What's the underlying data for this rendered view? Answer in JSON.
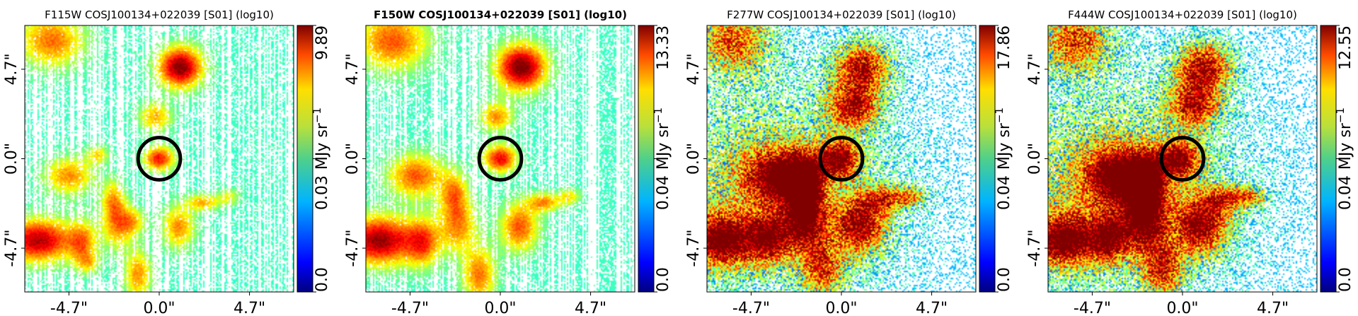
{
  "figure": {
    "panels": [
      {
        "title": "F115W COSJ100134+022039 [S01] (log10)",
        "title_bold": false,
        "colorbar": {
          "min_label": "0.0",
          "mid_label": "0.03",
          "max_label": "9.89",
          "unit": "MJy sr",
          "unit_sup": "−1"
        },
        "sources": [
          {
            "x": -5.6,
            "y": 6.2,
            "a": 1.2,
            "b": 1.0,
            "amp": 0.55
          },
          {
            "x": 1.1,
            "y": 4.8,
            "a": 0.8,
            "b": 0.75,
            "amp": 0.95
          },
          {
            "x": 0.0,
            "y": 0.0,
            "a": 0.55,
            "b": 0.45,
            "amp": 0.72
          },
          {
            "x": -0.2,
            "y": 2.2,
            "a": 0.6,
            "b": 0.55,
            "amp": 0.45
          },
          {
            "x": -4.7,
            "y": -0.9,
            "a": 0.9,
            "b": 0.7,
            "amp": 0.5
          },
          {
            "x": -3.2,
            "y": 0.2,
            "a": 0.4,
            "b": 0.35,
            "amp": 0.35
          },
          {
            "x": -2.4,
            "y": -2.1,
            "a": 0.4,
            "b": 0.7,
            "amp": 0.4
          },
          {
            "x": -2.2,
            "y": -3.5,
            "a": 0.6,
            "b": 0.9,
            "amp": 0.45
          },
          {
            "x": -1.4,
            "y": -3.3,
            "a": 0.5,
            "b": 0.5,
            "amp": 0.35
          },
          {
            "x": -6.3,
            "y": -4.3,
            "a": 1.3,
            "b": 0.8,
            "amp": 0.85
          },
          {
            "x": -4.0,
            "y": -4.4,
            "a": 0.5,
            "b": 0.8,
            "amp": 0.45
          },
          {
            "x": -3.7,
            "y": -5.5,
            "a": 0.4,
            "b": 0.4,
            "amp": 0.3
          },
          {
            "x": -1.1,
            "y": -6.1,
            "a": 0.5,
            "b": 0.9,
            "amp": 0.5
          },
          {
            "x": 1.0,
            "y": -3.6,
            "a": 0.6,
            "b": 0.8,
            "amp": 0.5
          },
          {
            "x": 2.3,
            "y": -2.3,
            "a": 0.6,
            "b": 0.3,
            "amp": 0.45
          },
          {
            "x": 3.6,
            "y": -2.0,
            "a": 0.4,
            "b": 0.3,
            "amp": 0.3
          }
        ]
      },
      {
        "title": "F150W COSJ100134+022039 [S01] (log10)",
        "title_bold": true,
        "colorbar": {
          "min_label": "0.0",
          "mid_label": "0.04",
          "max_label": "13.33",
          "unit": "MJy sr",
          "unit_sup": "−1"
        },
        "sources": [
          {
            "x": -5.6,
            "y": 6.2,
            "a": 1.3,
            "b": 1.1,
            "amp": 0.6
          },
          {
            "x": 1.1,
            "y": 4.8,
            "a": 0.9,
            "b": 0.85,
            "amp": 0.97
          },
          {
            "x": 0.0,
            "y": 0.0,
            "a": 0.6,
            "b": 0.5,
            "amp": 0.75
          },
          {
            "x": -0.2,
            "y": 2.2,
            "a": 0.6,
            "b": 0.55,
            "amp": 0.5
          },
          {
            "x": -4.4,
            "y": -0.9,
            "a": 1.0,
            "b": 0.8,
            "amp": 0.6
          },
          {
            "x": -2.4,
            "y": -1.8,
            "a": 0.5,
            "b": 0.8,
            "amp": 0.45
          },
          {
            "x": -2.2,
            "y": -3.5,
            "a": 0.7,
            "b": 1.0,
            "amp": 0.5
          },
          {
            "x": -6.3,
            "y": -4.3,
            "a": 1.4,
            "b": 0.9,
            "amp": 0.9
          },
          {
            "x": -4.0,
            "y": -4.4,
            "a": 0.6,
            "b": 0.9,
            "amp": 0.5
          },
          {
            "x": -1.1,
            "y": -6.1,
            "a": 0.6,
            "b": 1.0,
            "amp": 0.55
          },
          {
            "x": 1.0,
            "y": -3.6,
            "a": 0.7,
            "b": 0.9,
            "amp": 0.6
          },
          {
            "x": 2.3,
            "y": -2.3,
            "a": 0.6,
            "b": 0.35,
            "amp": 0.5
          },
          {
            "x": 3.6,
            "y": -2.0,
            "a": 0.4,
            "b": 0.3,
            "amp": 0.35
          }
        ]
      },
      {
        "title": "F277W COSJ100134+022039 [S01] (log10)",
        "title_bold": false,
        "colorbar": {
          "min_label": "0.0",
          "mid_label": "0.04",
          "max_label": "17.86",
          "unit": "MJy sr",
          "unit_sup": "−1"
        },
        "sources": [
          {
            "x": -3.8,
            "y": -1.5,
            "a": 4.5,
            "b": 4.0,
            "amp": 0.45
          },
          {
            "x": -3.2,
            "y": -0.9,
            "a": 1.3,
            "b": 1.0,
            "amp": 0.8
          },
          {
            "x": -5.6,
            "y": 6.2,
            "a": 1.4,
            "b": 1.2,
            "amp": 0.7
          },
          {
            "x": 1.1,
            "y": 4.8,
            "a": 1.1,
            "b": 1.0,
            "amp": 0.85
          },
          {
            "x": 0.6,
            "y": 2.7,
            "a": 1.0,
            "b": 0.8,
            "amp": 0.75
          },
          {
            "x": -0.1,
            "y": 0.0,
            "a": 0.8,
            "b": 0.7,
            "amp": 0.8
          },
          {
            "x": -1.9,
            "y": -1.4,
            "a": 0.6,
            "b": 1.0,
            "amp": 0.7
          },
          {
            "x": -1.9,
            "y": -3.4,
            "a": 0.8,
            "b": 1.1,
            "amp": 0.7
          },
          {
            "x": -6.2,
            "y": -4.3,
            "a": 1.4,
            "b": 1.0,
            "amp": 0.9
          },
          {
            "x": -3.7,
            "y": -4.2,
            "a": 0.7,
            "b": 0.9,
            "amp": 0.6
          },
          {
            "x": -1.0,
            "y": -5.9,
            "a": 0.8,
            "b": 1.0,
            "amp": 0.6
          },
          {
            "x": 1.0,
            "y": -3.5,
            "a": 1.0,
            "b": 1.1,
            "amp": 0.8
          },
          {
            "x": 2.3,
            "y": -2.1,
            "a": 0.8,
            "b": 0.5,
            "amp": 0.55
          },
          {
            "x": 3.7,
            "y": -2.0,
            "a": 0.6,
            "b": 0.4,
            "amp": 0.45
          }
        ]
      },
      {
        "title": "F444W COSJ100134+022039 [S01] (log10)",
        "title_bold": false,
        "colorbar": {
          "min_label": "0.0",
          "mid_label": "0.04",
          "max_label": "12.55",
          "unit": "MJy sr",
          "unit_sup": "−1"
        },
        "sources": [
          {
            "x": -3.8,
            "y": -1.5,
            "a": 4.5,
            "b": 4.0,
            "amp": 0.45
          },
          {
            "x": -3.2,
            "y": -0.9,
            "a": 1.4,
            "b": 1.1,
            "amp": 0.85
          },
          {
            "x": -5.6,
            "y": 6.2,
            "a": 1.4,
            "b": 1.2,
            "amp": 0.7
          },
          {
            "x": 1.1,
            "y": 4.8,
            "a": 1.1,
            "b": 1.0,
            "amp": 0.88
          },
          {
            "x": 0.6,
            "y": 2.7,
            "a": 1.0,
            "b": 0.8,
            "amp": 0.72
          },
          {
            "x": -0.1,
            "y": 0.0,
            "a": 0.8,
            "b": 0.7,
            "amp": 0.75
          },
          {
            "x": -1.9,
            "y": -1.4,
            "a": 0.6,
            "b": 1.0,
            "amp": 0.7
          },
          {
            "x": -1.9,
            "y": -3.4,
            "a": 0.8,
            "b": 1.1,
            "amp": 0.7
          },
          {
            "x": -6.2,
            "y": -4.3,
            "a": 1.4,
            "b": 1.0,
            "amp": 0.9
          },
          {
            "x": -3.7,
            "y": -4.2,
            "a": 0.7,
            "b": 0.9,
            "amp": 0.6
          },
          {
            "x": -1.0,
            "y": -5.9,
            "a": 0.8,
            "b": 1.0,
            "amp": 0.65
          },
          {
            "x": 1.0,
            "y": -3.5,
            "a": 1.0,
            "b": 1.1,
            "amp": 0.85
          },
          {
            "x": 2.3,
            "y": -2.1,
            "a": 0.8,
            "b": 0.5,
            "amp": 0.55
          },
          {
            "x": 3.7,
            "y": -2.0,
            "a": 0.6,
            "b": 0.4,
            "amp": 0.45
          }
        ]
      }
    ]
  },
  "chart_data": [
    {
      "type": "heatmap",
      "title": "F115W COSJ100134+022039 [S01] (log10)",
      "x_ticks": [
        "-4.7\"",
        "0.0\"",
        "4.7\""
      ],
      "y_ticks": [
        "-4.7\"",
        "0.0\"",
        "4.7\""
      ],
      "xlim": [
        -7.0,
        7.0
      ],
      "ylim": [
        -7.0,
        7.0
      ],
      "colorbar_ticks": [
        "0.0",
        "0.03",
        "9.89"
      ],
      "colorbar_label": "MJy sr^-1",
      "colormap": "jet",
      "aperture": {
        "x": 0.0,
        "y": 0.0,
        "radius": 1.1
      }
    },
    {
      "type": "heatmap",
      "title": "F150W COSJ100134+022039 [S01] (log10)",
      "x_ticks": [
        "-4.7\"",
        "0.0\"",
        "4.7\""
      ],
      "y_ticks": [
        "-4.7\"",
        "0.0\"",
        "4.7\""
      ],
      "xlim": [
        -7.0,
        7.0
      ],
      "ylim": [
        -7.0,
        7.0
      ],
      "colorbar_ticks": [
        "0.0",
        "0.04",
        "13.33"
      ],
      "colorbar_label": "MJy sr^-1",
      "colormap": "jet",
      "aperture": {
        "x": 0.0,
        "y": 0.0,
        "radius": 1.1
      }
    },
    {
      "type": "heatmap",
      "title": "F277W COSJ100134+022039 [S01] (log10)",
      "x_ticks": [
        "-4.7\"",
        "0.0\"",
        "4.7\""
      ],
      "y_ticks": [
        "-4.7\"",
        "0.0\"",
        "4.7\""
      ],
      "xlim": [
        -7.0,
        7.0
      ],
      "ylim": [
        -7.0,
        7.0
      ],
      "colorbar_ticks": [
        "0.0",
        "0.04",
        "17.86"
      ],
      "colorbar_label": "MJy sr^-1",
      "colormap": "jet",
      "aperture": {
        "x": 0.0,
        "y": 0.0,
        "radius": 1.1
      }
    },
    {
      "type": "heatmap",
      "title": "F444W COSJ100134+022039 [S01] (log10)",
      "x_ticks": [
        "-4.7\"",
        "0.0\"",
        "4.7\""
      ],
      "y_ticks": [
        "-4.7\"",
        "0.0\"",
        "4.7\""
      ],
      "xlim": [
        -7.0,
        7.0
      ],
      "ylim": [
        -7.0,
        7.0
      ],
      "colorbar_ticks": [
        "0.0",
        "0.04",
        "12.55"
      ],
      "colorbar_label": "MJy sr^-1",
      "colormap": "jet",
      "aperture": {
        "x": 0.0,
        "y": 0.0,
        "radius": 1.1
      }
    }
  ]
}
